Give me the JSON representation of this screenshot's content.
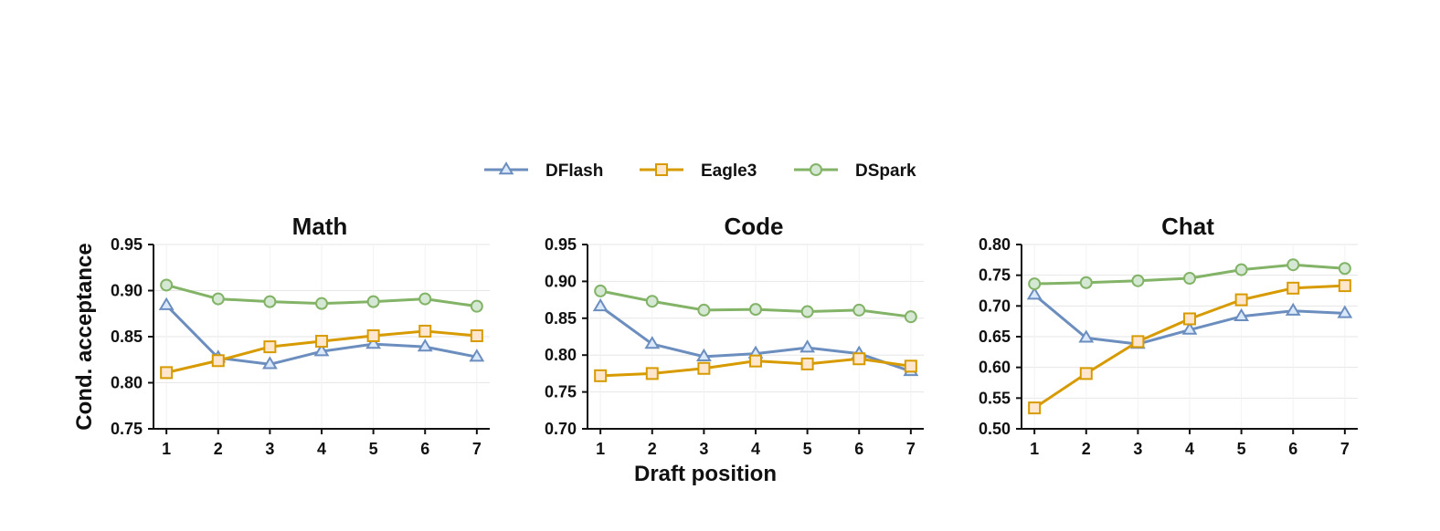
{
  "legend": [
    {
      "name": "DFlash",
      "color": "#6c8ebf",
      "marker": "triangle"
    },
    {
      "name": "Eagle3",
      "color": "#d79b00",
      "marker": "square"
    },
    {
      "name": "DSpark",
      "color": "#82b366",
      "marker": "circle"
    }
  ],
  "xlabel": "Draft position",
  "ylabel": "Cond. acceptance",
  "chart_data": [
    {
      "type": "line",
      "title": "Math",
      "x": [
        1,
        2,
        3,
        4,
        5,
        6,
        7
      ],
      "ylim": [
        0.75,
        0.95
      ],
      "yticks": [
        "0.75",
        "0.80",
        "0.85",
        "0.90",
        "0.95"
      ],
      "grid": true,
      "series": [
        {
          "name": "DFlash",
          "values": [
            0.884,
            0.827,
            0.82,
            0.834,
            0.842,
            0.839,
            0.828
          ]
        },
        {
          "name": "Eagle3",
          "values": [
            0.811,
            0.824,
            0.839,
            0.845,
            0.851,
            0.856,
            0.851
          ]
        },
        {
          "name": "DSpark",
          "values": [
            0.906,
            0.891,
            0.888,
            0.886,
            0.888,
            0.891,
            0.883
          ]
        }
      ]
    },
    {
      "type": "line",
      "title": "Code",
      "x": [
        1,
        2,
        3,
        4,
        5,
        6,
        7
      ],
      "ylim": [
        0.7,
        0.95
      ],
      "yticks": [
        "0.70",
        "0.75",
        "0.80",
        "0.85",
        "0.90",
        "0.95"
      ],
      "grid": true,
      "series": [
        {
          "name": "DFlash",
          "values": [
            0.866,
            0.815,
            0.798,
            0.802,
            0.81,
            0.802,
            0.778
          ]
        },
        {
          "name": "Eagle3",
          "values": [
            0.772,
            0.775,
            0.782,
            0.792,
            0.788,
            0.795,
            0.785
          ]
        },
        {
          "name": "DSpark",
          "values": [
            0.887,
            0.873,
            0.861,
            0.862,
            0.859,
            0.861,
            0.852
          ]
        }
      ]
    },
    {
      "type": "line",
      "title": "Chat",
      "x": [
        1,
        2,
        3,
        4,
        5,
        6,
        7
      ],
      "ylim": [
        0.5,
        0.8
      ],
      "yticks": [
        "0.50",
        "0.55",
        "0.60",
        "0.65",
        "0.70",
        "0.75",
        "0.80"
      ],
      "grid": true,
      "series": [
        {
          "name": "DFlash",
          "values": [
            0.718,
            0.648,
            0.638,
            0.661,
            0.683,
            0.692,
            0.688
          ]
        },
        {
          "name": "Eagle3",
          "values": [
            0.534,
            0.59,
            0.642,
            0.679,
            0.71,
            0.729,
            0.733
          ]
        },
        {
          "name": "DSpark",
          "values": [
            0.736,
            0.738,
            0.741,
            0.745,
            0.759,
            0.767,
            0.761
          ]
        }
      ]
    }
  ]
}
